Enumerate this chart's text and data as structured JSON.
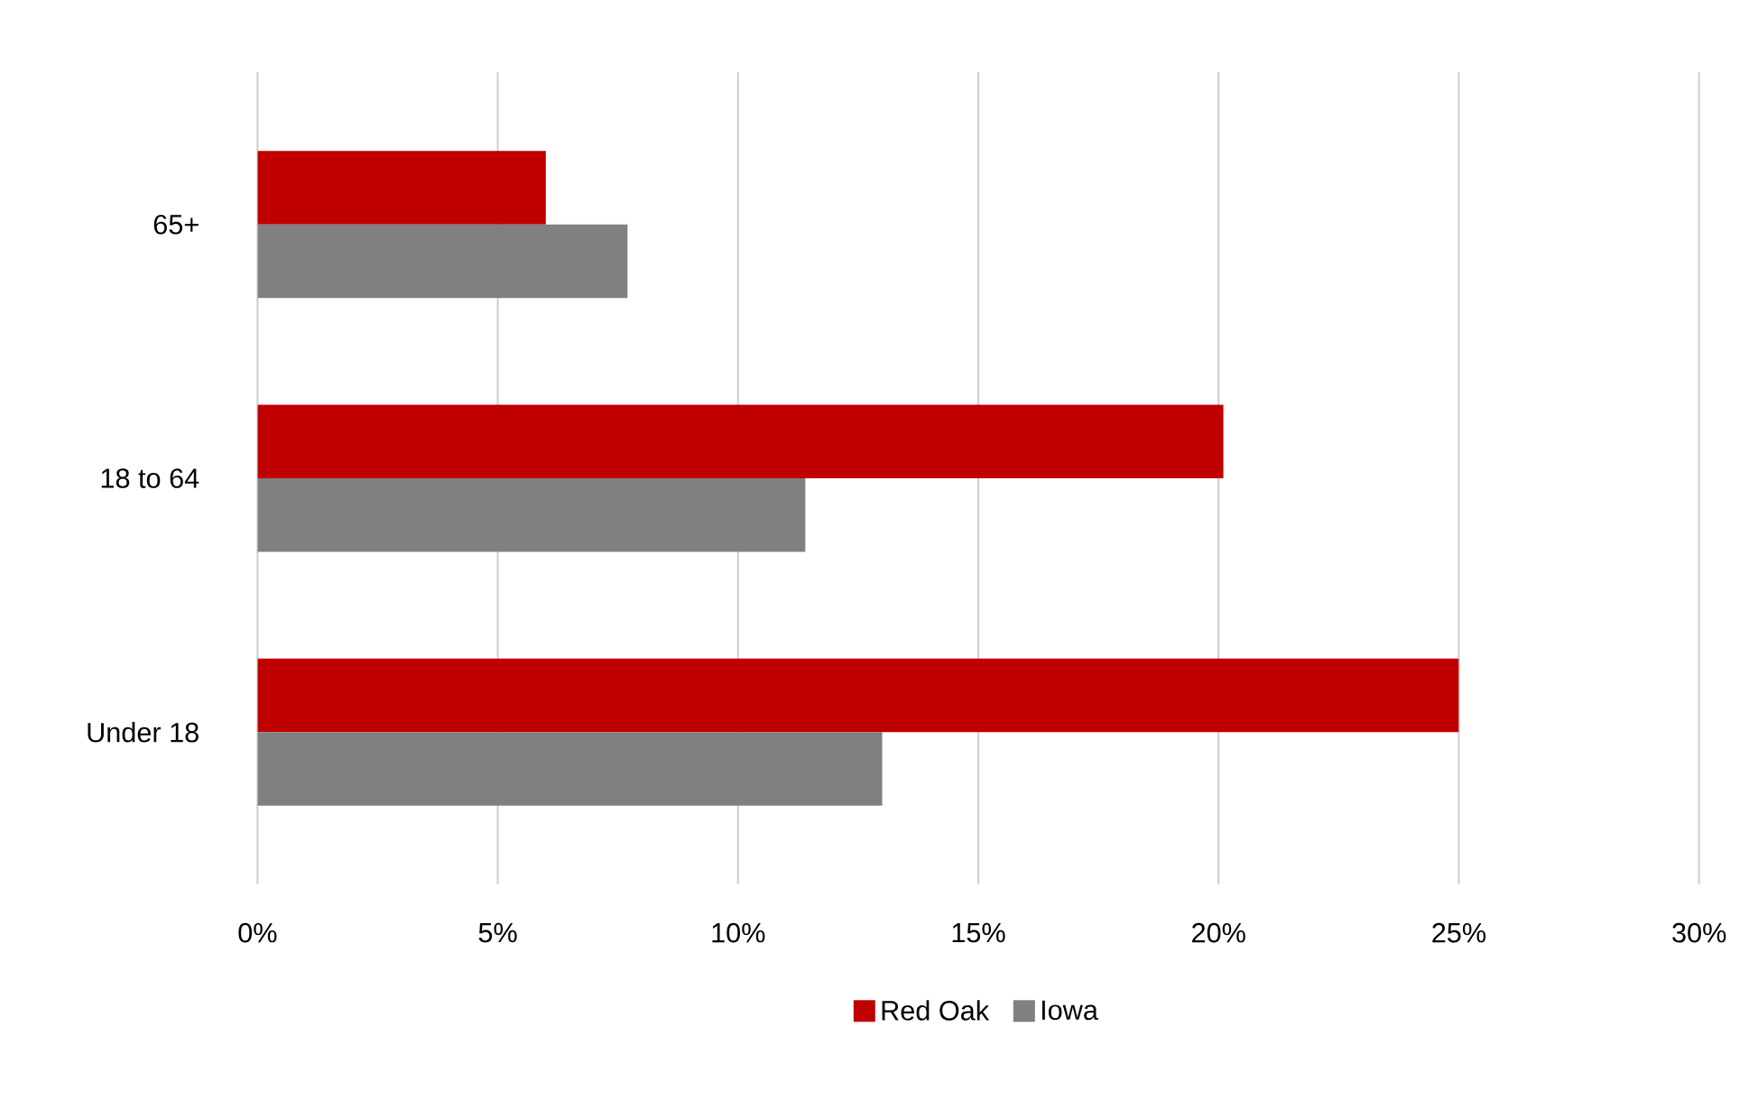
{
  "chart_data": {
    "type": "bar",
    "orientation": "horizontal",
    "categories": [
      "65+",
      "18 to 64",
      "Under 18"
    ],
    "series": [
      {
        "name": "Red Oak",
        "color": "#c00000",
        "values": [
          6.0,
          20.1,
          25.0
        ]
      },
      {
        "name": "Iowa",
        "color": "#808080",
        "values": [
          7.7,
          11.4,
          13.0
        ]
      }
    ],
    "xlim": [
      0,
      30
    ],
    "xticks": [
      {
        "value": 0,
        "label": "0%"
      },
      {
        "value": 5,
        "label": "5%"
      },
      {
        "value": 10,
        "label": "10%"
      },
      {
        "value": 15,
        "label": "15%"
      },
      {
        "value": 20,
        "label": "20%"
      },
      {
        "value": 25,
        "label": "25%"
      },
      {
        "value": 30,
        "label": "30%"
      }
    ],
    "grid": "x",
    "legend": "bottom"
  }
}
